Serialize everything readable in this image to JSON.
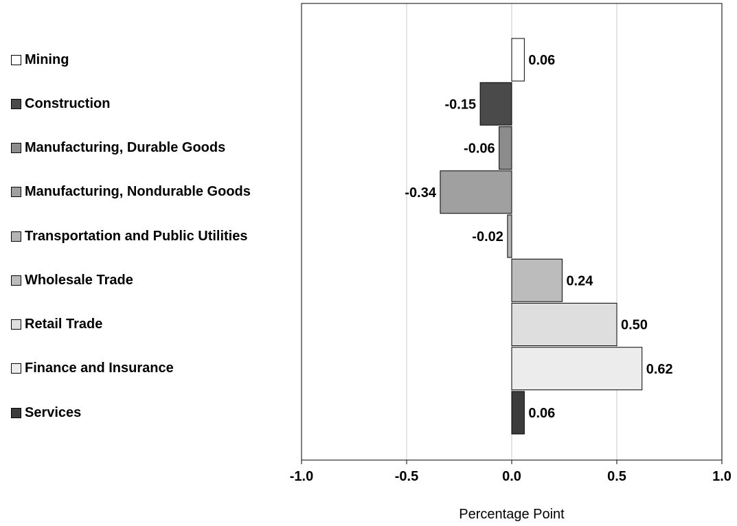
{
  "chart_data": {
    "type": "bar",
    "orientation": "horizontal",
    "categories": [
      "Mining",
      "Construction",
      "Manufacturing, Durable Goods",
      "Manufacturing, Nondurable Goods",
      "Transportation and Public Utilities",
      "Wholesale Trade",
      "Retail Trade",
      "Finance and Insurance",
      "Services"
    ],
    "values": [
      0.06,
      -0.15,
      -0.06,
      -0.34,
      -0.02,
      0.24,
      0.5,
      0.62,
      0.06
    ],
    "value_labels": [
      "0.06",
      "-0.15",
      "-0.06",
      "-0.34",
      "-0.02",
      "0.24",
      "0.50",
      "0.62",
      "0.06"
    ],
    "colors": [
      "#ffffff",
      "#4a4a4a",
      "#8c8c8c",
      "#a0a0a0",
      "#b4b4b4",
      "#bcbcbc",
      "#dedede",
      "#ececec",
      "#3c3c3c"
    ],
    "xlabel": "Percentage Point",
    "xlim": [
      -1.0,
      1.0
    ],
    "xticks": [
      -1.0,
      -0.5,
      0.0,
      0.5,
      1.0
    ],
    "xtick_labels": [
      "-1.0",
      "-0.5",
      "0.0",
      "0.5",
      "1.0"
    ],
    "grid": "vertical",
    "legend_placement": "left"
  }
}
